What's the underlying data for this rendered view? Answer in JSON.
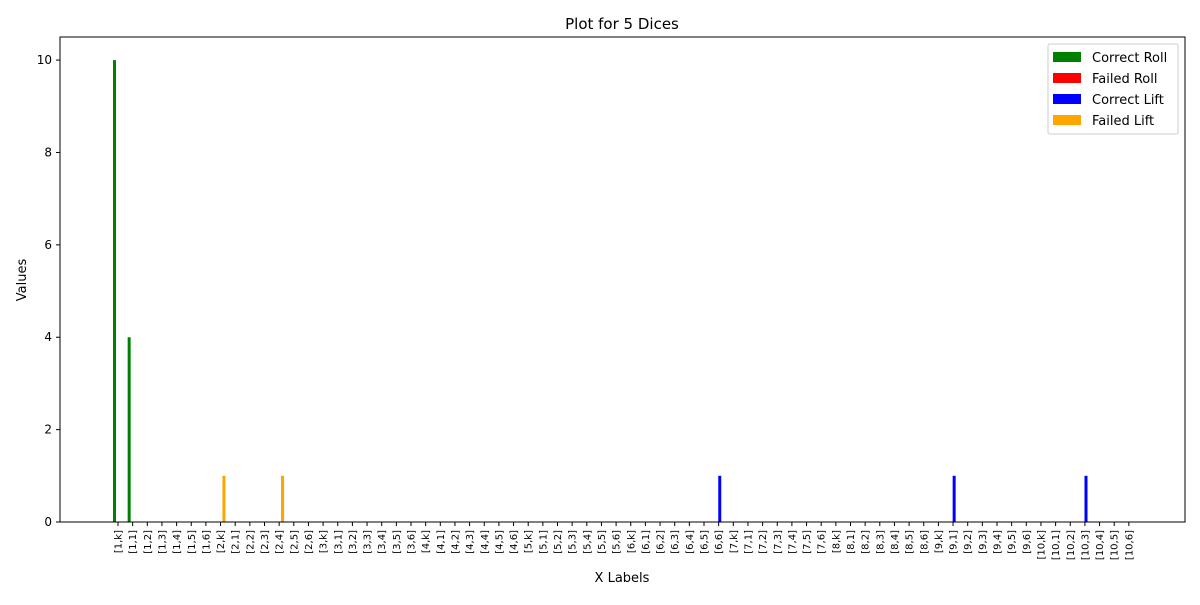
{
  "chart_data": {
    "type": "bar",
    "title": "Plot for 5 Dices",
    "xlabel": "X Labels",
    "ylabel": "Values",
    "ylim": [
      0,
      10.5
    ],
    "yticks": [
      0,
      2,
      4,
      6,
      8,
      10
    ],
    "grid": false,
    "legend_position": "top-right",
    "categories": [
      "[1,k]",
      "[1,1]",
      "[1,2]",
      "[1,3]",
      "[1,4]",
      "[1,5]",
      "[1,6]",
      "[2,k]",
      "[2,1]",
      "[2,2]",
      "[2,3]",
      "[2,4]",
      "[2,5]",
      "[2,6]",
      "[3,k]",
      "[3,1]",
      "[3,2]",
      "[3,3]",
      "[3,4]",
      "[3,5]",
      "[3,6]",
      "[4,k]",
      "[4,1]",
      "[4,2]",
      "[4,3]",
      "[4,4]",
      "[4,5]",
      "[4,6]",
      "[5,k]",
      "[5,1]",
      "[5,2]",
      "[5,3]",
      "[5,4]",
      "[5,5]",
      "[5,6]",
      "[6,k]",
      "[6,1]",
      "[6,2]",
      "[6,3]",
      "[6,4]",
      "[6,5]",
      "[6,6]",
      "[7,k]",
      "[7,1]",
      "[7,2]",
      "[7,3]",
      "[7,4]",
      "[7,5]",
      "[7,6]",
      "[8,k]",
      "[8,1]",
      "[8,2]",
      "[8,3]",
      "[8,4]",
      "[8,5]",
      "[8,6]",
      "[9,k]",
      "[9,1]",
      "[9,2]",
      "[9,3]",
      "[9,4]",
      "[9,5]",
      "[9,6]",
      "[10,k]",
      "[10,1]",
      "[10,2]",
      "[10,3]",
      "[10,4]",
      "[10,5]",
      "[10,6]"
    ],
    "series": [
      {
        "name": "Correct Roll",
        "color": "#008000",
        "values": [
          10,
          4,
          0,
          0,
          0,
          0,
          0,
          0,
          0,
          0,
          0,
          0,
          0,
          0,
          0,
          0,
          0,
          0,
          0,
          0,
          0,
          0,
          0,
          0,
          0,
          0,
          0,
          0,
          0,
          0,
          0,
          0,
          0,
          0,
          0,
          0,
          0,
          0,
          0,
          0,
          0,
          0,
          0,
          0,
          0,
          0,
          0,
          0,
          0,
          0,
          0,
          0,
          0,
          0,
          0,
          0,
          0,
          0,
          0,
          0,
          0,
          0,
          0,
          0,
          0,
          0,
          0,
          0,
          0,
          0
        ]
      },
      {
        "name": "Failed Roll",
        "color": "#ff0000",
        "values": [
          0,
          0,
          0,
          0,
          0,
          0,
          0,
          0,
          0,
          0,
          0,
          0,
          0,
          0,
          0,
          0,
          0,
          0,
          0,
          0,
          0,
          0,
          0,
          0,
          0,
          0,
          0,
          0,
          0,
          0,
          0,
          0,
          0,
          0,
          0,
          0,
          0,
          0,
          0,
          0,
          0,
          0,
          0,
          0,
          0,
          0,
          0,
          0,
          0,
          0,
          0,
          0,
          0,
          0,
          0,
          0,
          0,
          0,
          0,
          0,
          0,
          0,
          0,
          0,
          0,
          0,
          0,
          0,
          0,
          0
        ]
      },
      {
        "name": "Correct Lift",
        "color": "#0000ff",
        "values": [
          0,
          0,
          0,
          0,
          0,
          0,
          0,
          0,
          0,
          0,
          0,
          0,
          0,
          0,
          0,
          0,
          0,
          0,
          0,
          0,
          0,
          0,
          0,
          0,
          0,
          0,
          0,
          0,
          0,
          0,
          0,
          0,
          0,
          0,
          0,
          0,
          0,
          0,
          0,
          0,
          0,
          1,
          0,
          0,
          0,
          0,
          0,
          0,
          0,
          0,
          0,
          0,
          0,
          0,
          0,
          0,
          0,
          1,
          0,
          0,
          0,
          0,
          0,
          0,
          0,
          0,
          1,
          0,
          0,
          0
        ]
      },
      {
        "name": "Failed Lift",
        "color": "#ffa500",
        "values": [
          0,
          0,
          0,
          0,
          0,
          0,
          0,
          1,
          0,
          0,
          0,
          1,
          0,
          0,
          0,
          0,
          0,
          0,
          0,
          0,
          0,
          0,
          0,
          0,
          0,
          0,
          0,
          0,
          0,
          0,
          0,
          0,
          0,
          0,
          0,
          0,
          0,
          0,
          0,
          0,
          0,
          0,
          0,
          0,
          0,
          0,
          0,
          0,
          0,
          0,
          0,
          0,
          0,
          0,
          0,
          0,
          0,
          0,
          0,
          0,
          0,
          0,
          0,
          0,
          0,
          0,
          0,
          0,
          0,
          0
        ]
      }
    ]
  }
}
